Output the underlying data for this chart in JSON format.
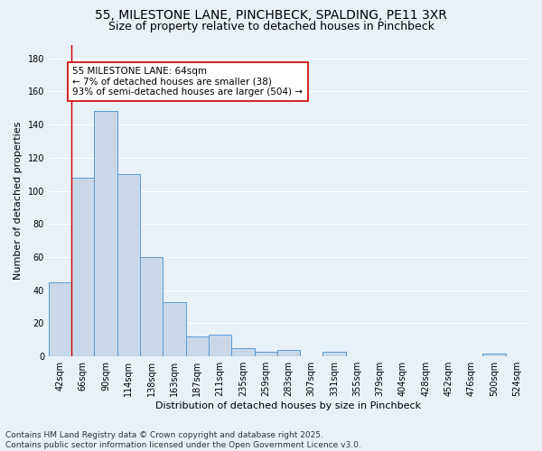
{
  "title": "55, MILESTONE LANE, PINCHBECK, SPALDING, PE11 3XR",
  "subtitle": "Size of property relative to detached houses in Pinchbeck",
  "xlabel": "Distribution of detached houses by size in Pinchbeck",
  "ylabel": "Number of detached properties",
  "bar_color": "#c8d8e8",
  "bar_edge_color": "#5b9bd5",
  "bg_color": "#e8f0f8",
  "grid_color": "#ffffff",
  "bins": [
    "42sqm",
    "66sqm",
    "90sqm",
    "114sqm",
    "138sqm",
    "163sqm",
    "187sqm",
    "211sqm",
    "235sqm",
    "259sqm",
    "283sqm",
    "307sqm",
    "331sqm",
    "355sqm",
    "379sqm",
    "404sqm",
    "428sqm",
    "452sqm",
    "476sqm",
    "500sqm",
    "524sqm"
  ],
  "values": [
    45,
    108,
    148,
    110,
    60,
    33,
    12,
    13,
    5,
    3,
    4,
    0,
    3,
    0,
    0,
    0,
    0,
    0,
    0,
    2,
    0
  ],
  "ylim": [
    0,
    188
  ],
  "yticks": [
    0,
    20,
    40,
    60,
    80,
    100,
    120,
    140,
    160,
    180
  ],
  "vline_x_index": 1,
  "vline_color": "#cc0000",
  "annotation_text": "55 MILESTONE LANE: 64sqm\n← 7% of detached houses are smaller (38)\n93% of semi-detached houses are larger (504) →",
  "annotation_box_color": "#ffffff",
  "annotation_box_edge": "#cc0000",
  "footnote": "Contains HM Land Registry data © Crown copyright and database right 2025.\nContains public sector information licensed under the Open Government Licence v3.0.",
  "title_fontsize": 10,
  "subtitle_fontsize": 9,
  "axis_label_fontsize": 8,
  "tick_fontsize": 7,
  "annotation_fontsize": 7.5,
  "footnote_fontsize": 6.5
}
